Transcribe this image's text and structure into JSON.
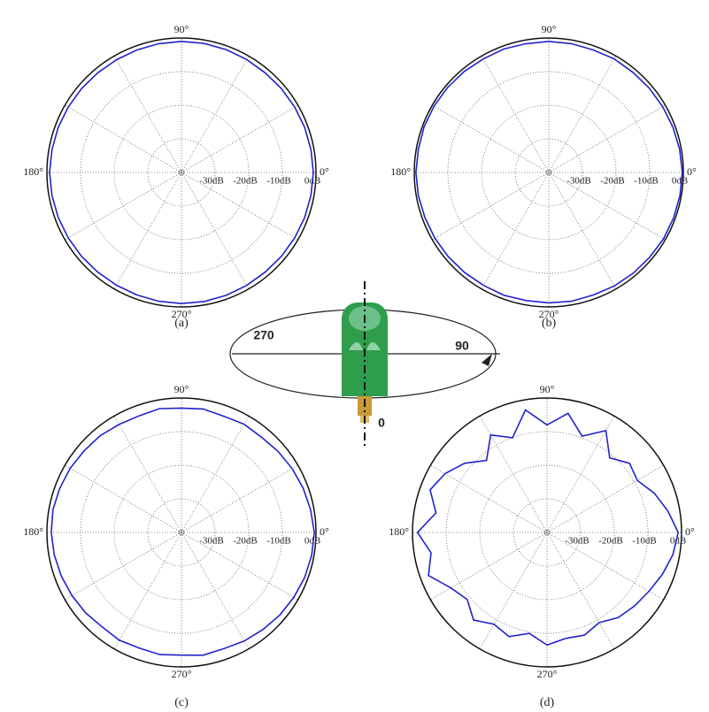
{
  "chart_data": [
    {
      "type": "polar",
      "caption": "(a)",
      "theta": [
        0,
        10,
        20,
        30,
        40,
        50,
        60,
        70,
        80,
        90,
        100,
        110,
        120,
        130,
        140,
        150,
        160,
        170,
        180,
        190,
        200,
        210,
        220,
        230,
        240,
        250,
        260,
        270,
        280,
        290,
        300,
        310,
        320,
        330,
        340,
        350
      ],
      "values": [
        -0.8,
        -0.9,
        -1.0,
        -1.1,
        -1.2,
        -1.3,
        -1.2,
        -1.1,
        -1.0,
        -1.0,
        -1.1,
        -1.2,
        -1.3,
        -1.3,
        -1.2,
        -1.1,
        -1.0,
        -0.9,
        -0.8,
        -0.9,
        -1.0,
        -1.1,
        -1.2,
        -1.3,
        -1.3,
        -1.2,
        -1.1,
        -1.0,
        -1.0,
        -1.1,
        -1.2,
        -1.3,
        -1.2,
        -1.1,
        -1.0,
        -0.9
      ],
      "color": "#2222cc",
      "rlim": [
        -40,
        0
      ],
      "rticks": [
        {
          "value": -30,
          "label": "-30dB"
        },
        {
          "value": -20,
          "label": "-20dB"
        },
        {
          "value": -10,
          "label": "-10dB"
        },
        {
          "value": 0,
          "label": "0dB"
        }
      ],
      "thetaticks": [
        {
          "value": 0,
          "label": "0°"
        },
        {
          "value": 90,
          "label": "90°"
        },
        {
          "value": 180,
          "label": "180°"
        },
        {
          "value": 270,
          "label": "270°"
        }
      ],
      "thetagrid": [
        0,
        30,
        60,
        90,
        120,
        150,
        180,
        210,
        240,
        270,
        300,
        330
      ]
    },
    {
      "type": "polar",
      "caption": "(b)",
      "theta": [
        0,
        10,
        20,
        30,
        40,
        50,
        60,
        70,
        80,
        90,
        100,
        110,
        120,
        130,
        140,
        150,
        160,
        170,
        180,
        190,
        200,
        210,
        220,
        230,
        240,
        250,
        260,
        270,
        280,
        290,
        300,
        310,
        320,
        330,
        340,
        350
      ],
      "values": [
        -0.3,
        -0.5,
        -0.7,
        -0.9,
        -1.0,
        -1.1,
        -1.0,
        -1.2,
        -1.1,
        -1.0,
        -1.1,
        -0.9,
        -1.0,
        -0.8,
        -0.7,
        -0.6,
        -0.5,
        -0.6,
        -0.5,
        -0.6,
        -0.8,
        -0.9,
        -1.0,
        -1.1,
        -1.2,
        -1.1,
        -1.3,
        -1.2,
        -1.1,
        -1.2,
        -1.0,
        -0.9,
        -0.8,
        -0.6,
        -0.5,
        -0.4
      ],
      "color": "#2222cc",
      "rlim": [
        -40,
        0
      ],
      "rticks": [
        {
          "value": -30,
          "label": "-30dB"
        },
        {
          "value": -20,
          "label": "-20dB"
        },
        {
          "value": -10,
          "label": "-10dB"
        },
        {
          "value": 0,
          "label": "0dB"
        }
      ],
      "thetaticks": [
        {
          "value": 0,
          "label": "0°"
        },
        {
          "value": 90,
          "label": "90°"
        },
        {
          "value": 180,
          "label": "180°"
        },
        {
          "value": 270,
          "label": "270°"
        }
      ],
      "thetagrid": [
        0,
        30,
        60,
        90,
        120,
        150,
        180,
        210,
        240,
        270,
        300,
        330
      ]
    },
    {
      "type": "polar",
      "caption": "(c)",
      "theta": [
        0,
        10,
        20,
        30,
        40,
        50,
        60,
        70,
        80,
        90,
        100,
        110,
        120,
        130,
        140,
        150,
        160,
        170,
        180,
        190,
        200,
        210,
        220,
        230,
        240,
        250,
        260,
        270,
        280,
        290,
        300,
        310,
        320,
        330,
        340,
        350
      ],
      "values": [
        -0.5,
        -1.0,
        -1.5,
        -2.0,
        -2.5,
        -3.0,
        -2.8,
        -3.2,
        -2.7,
        -3.0,
        -2.6,
        -3.1,
        -2.9,
        -2.4,
        -2.2,
        -1.8,
        -1.5,
        -1.2,
        -1.3,
        -1.6,
        -2.0,
        -2.4,
        -2.8,
        -3.3,
        -3.0,
        -3.4,
        -3.1,
        -3.5,
        -2.9,
        -3.2,
        -2.7,
        -2.3,
        -1.8,
        -1.4,
        -1.0,
        -0.7
      ],
      "color": "#2222cc",
      "rlim": [
        -40,
        0
      ],
      "rticks": [
        {
          "value": -30,
          "label": "-30dB"
        },
        {
          "value": -20,
          "label": "-20dB"
        },
        {
          "value": -10,
          "label": "-10dB"
        },
        {
          "value": 0,
          "label": "0dB"
        }
      ],
      "thetaticks": [
        {
          "value": 0,
          "label": "0°"
        },
        {
          "value": 90,
          "label": "90°"
        },
        {
          "value": 180,
          "label": "180°"
        },
        {
          "value": 270,
          "label": "270°"
        }
      ],
      "thetagrid": [
        0,
        30,
        60,
        90,
        120,
        150,
        180,
        210,
        240,
        270,
        300,
        330
      ]
    },
    {
      "type": "polar",
      "caption": "(d)",
      "theta": [
        0,
        10,
        20,
        30,
        40,
        50,
        60,
        70,
        80,
        90,
        100,
        110,
        120,
        130,
        140,
        150,
        160,
        170,
        180,
        190,
        200,
        210,
        220,
        230,
        240,
        250,
        260,
        270,
        280,
        290,
        300,
        310,
        320,
        330,
        340,
        350
      ],
      "values": [
        -1.0,
        -3.5,
        -6.0,
        -9.0,
        -8.0,
        -11.0,
        -5.0,
        -9.5,
        -4.0,
        -8.0,
        -3.0,
        -10.0,
        -6.5,
        -12.0,
        -8.0,
        -5.0,
        -3.0,
        -6.5,
        -1.5,
        -5.0,
        -2.5,
        -7.0,
        -9.0,
        -6.0,
        -8.5,
        -7.0,
        -9.5,
        -6.5,
        -8.0,
        -7.5,
        -9.0,
        -7.0,
        -6.0,
        -5.0,
        -3.5,
        -2.0
      ],
      "color": "#2222cc",
      "rlim": [
        -40,
        0
      ],
      "rticks": [
        {
          "value": -30,
          "label": "-30dB"
        },
        {
          "value": -20,
          "label": "-20dB"
        },
        {
          "value": -10,
          "label": "-10dB"
        },
        {
          "value": 0,
          "label": "0dB"
        }
      ],
      "thetaticks": [
        {
          "value": 0,
          "label": "0°"
        },
        {
          "value": 90,
          "label": "90°"
        },
        {
          "value": 180,
          "label": "180°"
        },
        {
          "value": 270,
          "label": "270°"
        }
      ],
      "thetagrid": [
        0,
        30,
        60,
        90,
        120,
        150,
        180,
        210,
        240,
        270,
        300,
        330
      ]
    }
  ],
  "diagram": {
    "labels": [
      "270",
      "90",
      "0"
    ]
  }
}
